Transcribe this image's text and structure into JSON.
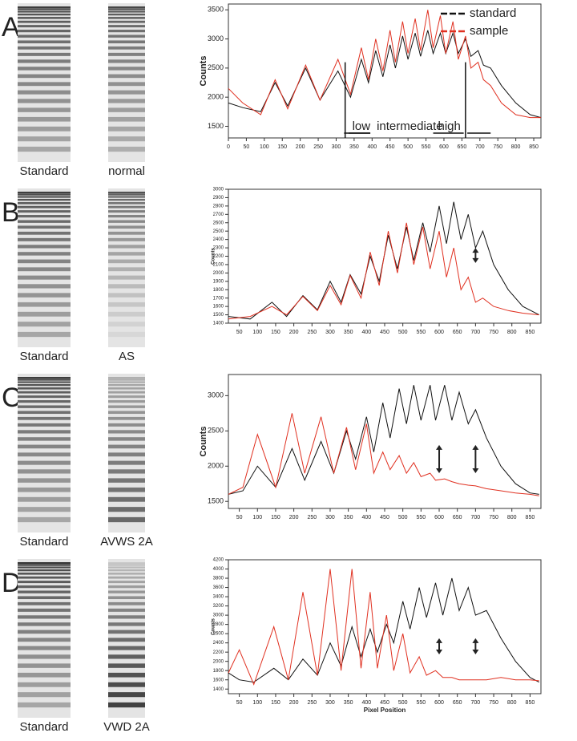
{
  "chart_data": [
    {
      "type": "line",
      "panel": "A",
      "lanes": [
        "Standard",
        "normal"
      ],
      "y_label": "Counts",
      "legend": "top-right",
      "annotations": [
        "low",
        "intermediate",
        "high"
      ],
      "x": [
        0,
        40,
        90,
        130,
        165,
        215,
        255,
        305,
        340,
        370,
        390,
        410,
        430,
        450,
        465,
        485,
        500,
        520,
        535,
        555,
        570,
        590,
        605,
        625,
        640,
        660,
        675,
        695,
        710,
        730,
        760,
        800,
        840,
        870
      ],
      "xlim": [
        0,
        870
      ],
      "xticks": [
        0,
        50,
        100,
        150,
        200,
        250,
        300,
        350,
        400,
        450,
        500,
        550,
        600,
        650,
        700,
        750,
        800,
        850
      ],
      "ylim": [
        1300,
        3600
      ],
      "yticks": [
        1500,
        2000,
        2500,
        3000,
        3500
      ],
      "series": [
        {
          "name": "standard",
          "color": "#111111",
          "values": [
            1900,
            1820,
            1750,
            2250,
            1850,
            2500,
            1950,
            2450,
            2000,
            2650,
            2250,
            2800,
            2350,
            2900,
            2500,
            3050,
            2650,
            3100,
            2700,
            3150,
            2750,
            3100,
            2750,
            3100,
            2750,
            3000,
            2700,
            2800,
            2550,
            2500,
            2200,
            1900,
            1700,
            1650
          ]
        },
        {
          "name": "sample",
          "color": "#e03020",
          "values": [
            2150,
            1900,
            1700,
            2300,
            1800,
            2550,
            1950,
            2650,
            2050,
            2850,
            2300,
            3000,
            2450,
            3150,
            2600,
            3300,
            2750,
            3350,
            2800,
            3500,
            2850,
            3400,
            2750,
            3300,
            2650,
            3050,
            2500,
            2600,
            2300,
            2200,
            1900,
            1700,
            1650,
            1650
          ]
        }
      ]
    },
    {
      "type": "line",
      "panel": "B",
      "lanes": [
        "Standard",
        "AS"
      ],
      "y_label": "Counts",
      "x": [
        20,
        80,
        140,
        180,
        225,
        265,
        300,
        330,
        355,
        385,
        410,
        435,
        460,
        485,
        510,
        530,
        555,
        575,
        600,
        620,
        640,
        660,
        680,
        700,
        720,
        750,
        790,
        830,
        875
      ],
      "xlim": [
        20,
        880
      ],
      "xticks": [
        50,
        100,
        150,
        200,
        250,
        300,
        350,
        400,
        450,
        500,
        550,
        600,
        650,
        700,
        750,
        800,
        850
      ],
      "ylim": [
        1400,
        3000
      ],
      "yticks": [
        1400,
        1500,
        1600,
        1700,
        1800,
        1900,
        2000,
        2100,
        2200,
        2300,
        2400,
        2500,
        2600,
        2700,
        2800,
        2900,
        3000
      ],
      "series": [
        {
          "color": "#111111",
          "values": [
            1480,
            1450,
            1650,
            1480,
            1730,
            1560,
            1900,
            1650,
            1980,
            1750,
            2200,
            1900,
            2450,
            2050,
            2550,
            2150,
            2600,
            2250,
            2800,
            2350,
            2850,
            2400,
            2700,
            2300,
            2500,
            2100,
            1800,
            1600,
            1500
          ]
        },
        {
          "color": "#e03020",
          "values": [
            1450,
            1480,
            1600,
            1500,
            1720,
            1550,
            1850,
            1620,
            1970,
            1700,
            2250,
            1850,
            2500,
            2000,
            2600,
            2100,
            2550,
            2050,
            2500,
            1950,
            2300,
            1800,
            1950,
            1650,
            1700,
            1600,
            1550,
            1520,
            1500
          ]
        }
      ]
    },
    {
      "type": "line",
      "panel": "C",
      "lanes": [
        "Standard",
        "AVWS 2A"
      ],
      "y_label": "Counts",
      "x": [
        20,
        60,
        100,
        150,
        195,
        230,
        275,
        310,
        345,
        370,
        400,
        420,
        445,
        465,
        490,
        510,
        530,
        550,
        575,
        590,
        615,
        635,
        655,
        680,
        700,
        730,
        770,
        810,
        850,
        875
      ],
      "xlim": [
        20,
        880
      ],
      "xticks": [
        50,
        100,
        150,
        200,
        250,
        300,
        350,
        400,
        450,
        500,
        550,
        600,
        650,
        700,
        750,
        800,
        850
      ],
      "ylim": [
        1400,
        3300
      ],
      "yticks": [
        1500,
        2000,
        2500,
        3000
      ],
      "series": [
        {
          "color": "#111111",
          "values": [
            1600,
            1650,
            2000,
            1700,
            2250,
            1800,
            2350,
            1900,
            2500,
            2100,
            2700,
            2200,
            2900,
            2400,
            3100,
            2600,
            3150,
            2650,
            3150,
            2650,
            3150,
            2650,
            3050,
            2600,
            2800,
            2400,
            2000,
            1750,
            1620,
            1600
          ]
        },
        {
          "color": "#e03020",
          "values": [
            1600,
            1700,
            2450,
            1700,
            2750,
            1900,
            2700,
            1900,
            2550,
            1950,
            2600,
            1900,
            2200,
            1950,
            2150,
            1900,
            2050,
            1850,
            1900,
            1800,
            1820,
            1780,
            1750,
            1730,
            1720,
            1680,
            1650,
            1620,
            1600,
            1580
          ]
        }
      ]
    },
    {
      "type": "line",
      "panel": "D",
      "lanes": [
        "Standard",
        "VWD 2A"
      ],
      "y_label": "Counts",
      "x_label": "Pixel Position",
      "x": [
        20,
        50,
        90,
        145,
        185,
        225,
        265,
        300,
        330,
        360,
        385,
        410,
        430,
        455,
        475,
        500,
        520,
        545,
        565,
        590,
        610,
        635,
        655,
        680,
        700,
        730,
        770,
        810,
        850,
        875
      ],
      "xlim": [
        20,
        880
      ],
      "xticks": [
        50,
        100,
        150,
        200,
        250,
        300,
        350,
        400,
        450,
        500,
        550,
        600,
        650,
        700,
        750,
        800,
        850
      ],
      "ylim": [
        1300,
        4200
      ],
      "yticks": [
        1400,
        1600,
        1800,
        2000,
        2200,
        2400,
        2600,
        2800,
        3000,
        3200,
        3400,
        3600,
        3800,
        4000,
        4200
      ],
      "series": [
        {
          "color": "#111111",
          "values": [
            1750,
            1600,
            1550,
            1850,
            1600,
            2050,
            1700,
            2400,
            1900,
            2750,
            2100,
            2700,
            2200,
            2800,
            2400,
            3300,
            2700,
            3600,
            2950,
            3700,
            3000,
            3800,
            3100,
            3600,
            3000,
            3100,
            2500,
            2000,
            1650,
            1550
          ]
        },
        {
          "color": "#e03020",
          "values": [
            1750,
            2250,
            1500,
            2750,
            1600,
            3500,
            1700,
            4000,
            1800,
            4000,
            1850,
            3500,
            1850,
            3000,
            1800,
            2600,
            1750,
            2100,
            1700,
            1800,
            1650,
            1650,
            1600,
            1600,
            1600,
            1600,
            1650,
            1600,
            1600,
            1580
          ]
        }
      ]
    }
  ]
}
